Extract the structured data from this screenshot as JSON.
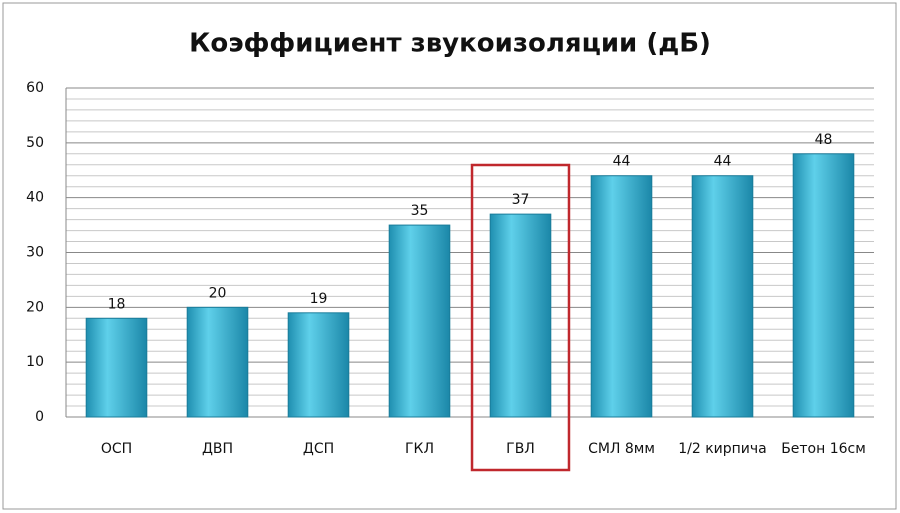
{
  "chart_data": {
    "type": "bar",
    "title": "Коэффициент звукоизоляции (дБ)",
    "categories": [
      "ОСП",
      "ДВП",
      "ДСП",
      "ГКЛ",
      "ГВЛ",
      "СМЛ 8мм",
      "1/2 кирпича",
      "Бетон 16см"
    ],
    "values": [
      18,
      20,
      19,
      35,
      37,
      44,
      44,
      48
    ],
    "color": "#33b2d3",
    "ylim": [
      0,
      60
    ],
    "yticks": [
      0,
      10,
      20,
      30,
      40,
      50,
      60
    ],
    "minor_yticks": [
      2,
      4,
      6,
      8,
      12,
      14,
      16,
      18,
      22,
      24,
      26,
      28,
      32,
      34,
      36,
      38,
      42,
      44,
      46,
      48,
      52,
      54,
      56,
      58
    ],
    "grid": true,
    "highlighted_category": 4,
    "highlight_color": "#c0282d"
  }
}
